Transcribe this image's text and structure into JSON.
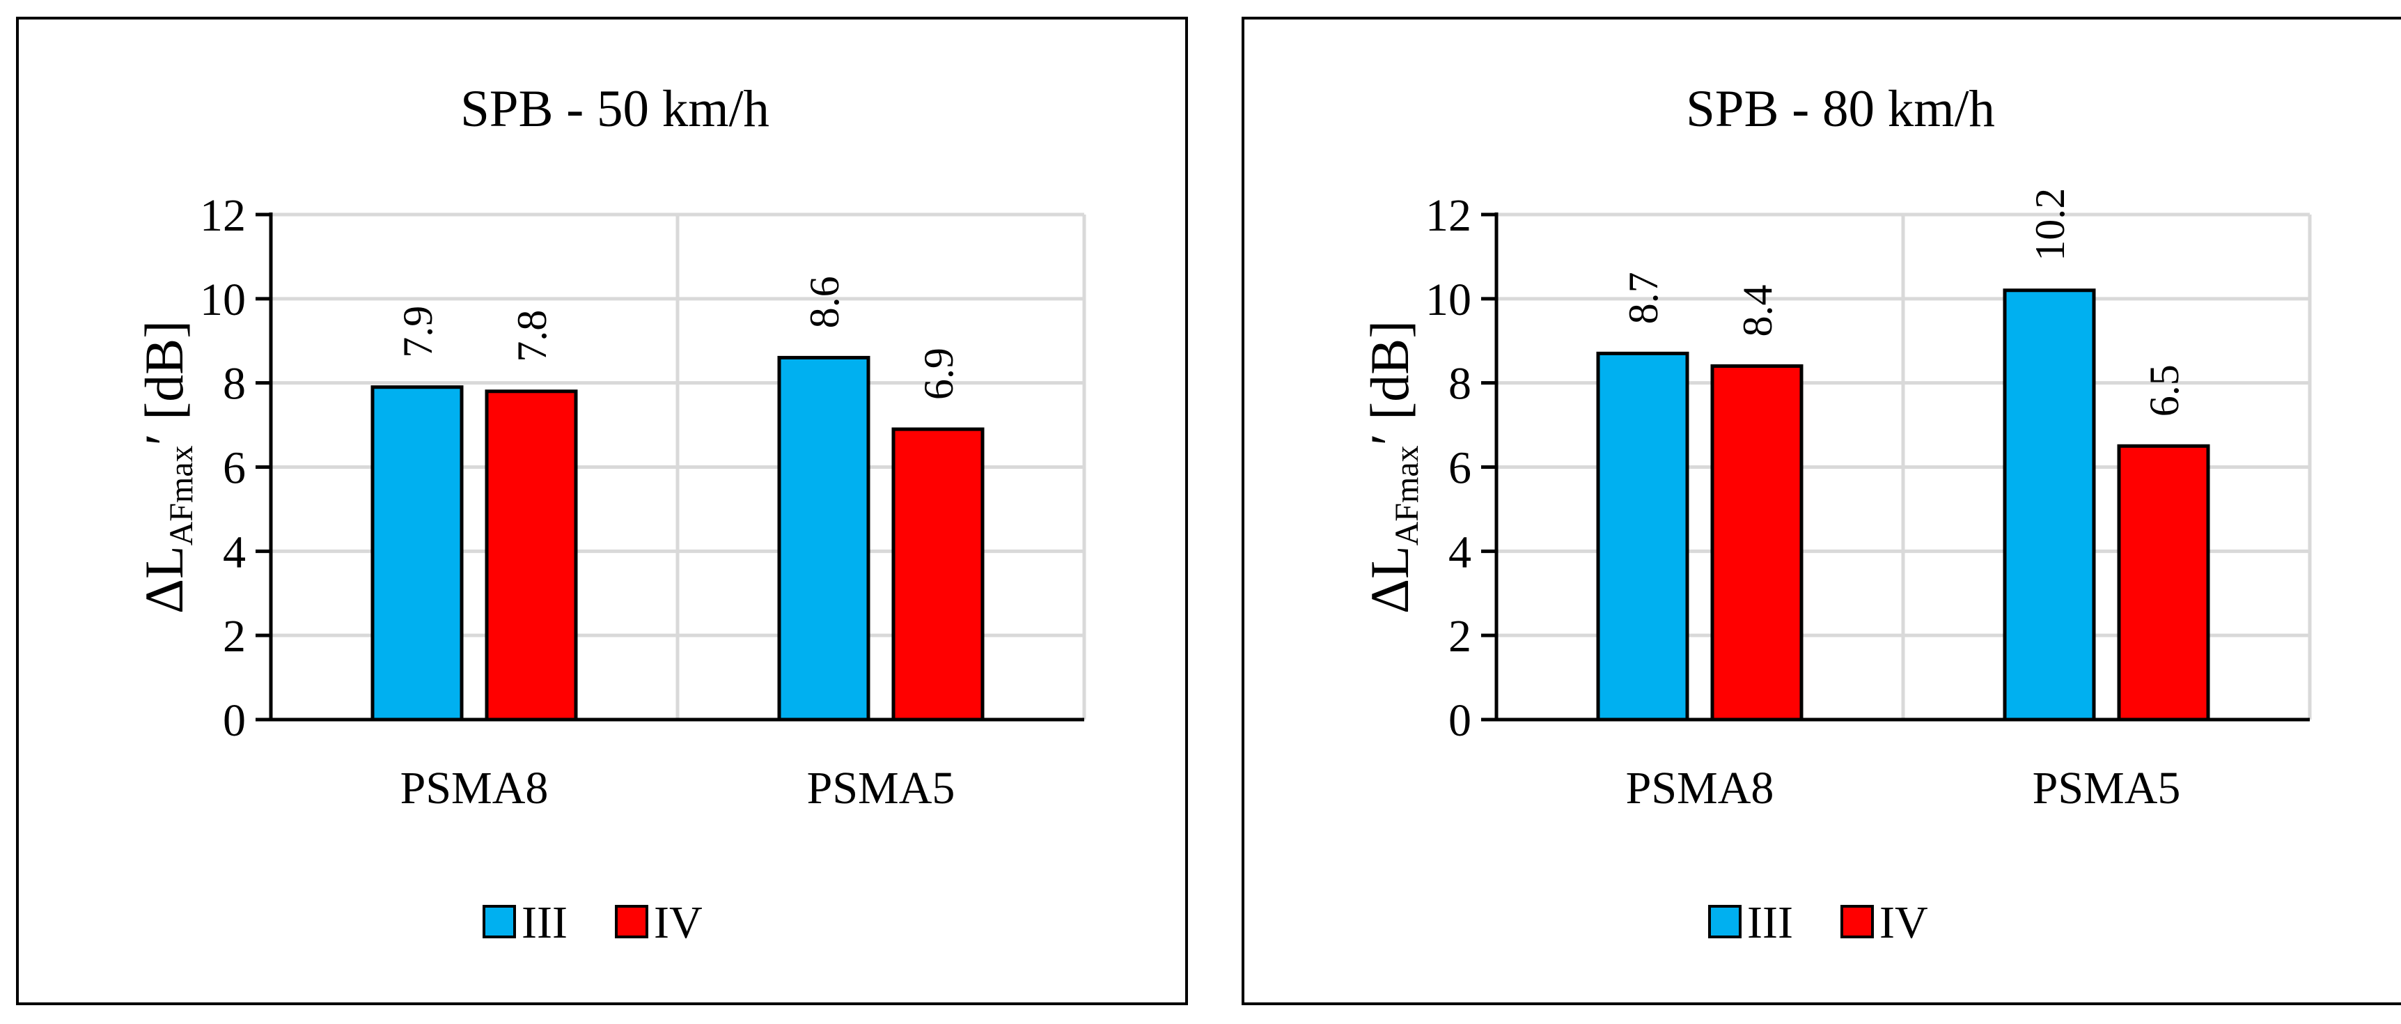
{
  "colors": {
    "III": "#00B0F0",
    "IV": "#FF0000",
    "grid": "#D9D9D9",
    "axis": "#000000"
  },
  "chart_data": [
    {
      "type": "bar",
      "title": "SPB - 50 km/h",
      "categories": [
        "PSMA8",
        "PSMA5"
      ],
      "series": [
        {
          "name": "III",
          "values": [
            7.9,
            8.6
          ]
        },
        {
          "name": "IV",
          "values": [
            7.8,
            6.9
          ]
        }
      ],
      "data_labels": [
        [
          "7.9",
          "8.6"
        ],
        [
          "7.8",
          "6.9"
        ]
      ],
      "ylabel": {
        "main": "ΔL",
        "sub": "AFmax",
        "suffix": "′ [dB]"
      },
      "ylim": [
        0,
        12
      ],
      "yticks": [
        "0",
        "2",
        "4",
        "6",
        "8",
        "10",
        "12"
      ],
      "legend": "bottom"
    },
    {
      "type": "bar",
      "title": "SPB - 80 km/h",
      "categories": [
        "PSMA8",
        "PSMA5"
      ],
      "series": [
        {
          "name": "III",
          "values": [
            8.7,
            10.2
          ]
        },
        {
          "name": "IV",
          "values": [
            8.4,
            6.5
          ]
        }
      ],
      "data_labels": [
        [
          "8.7",
          "10.2"
        ],
        [
          "8.4",
          "6.5"
        ]
      ],
      "ylabel": {
        "main": "ΔL",
        "sub": "AFmax",
        "suffix": "′ [dB]"
      },
      "ylim": [
        0,
        12
      ],
      "yticks": [
        "0",
        "2",
        "4",
        "6",
        "8",
        "10",
        "12"
      ],
      "legend": "bottom"
    }
  ]
}
